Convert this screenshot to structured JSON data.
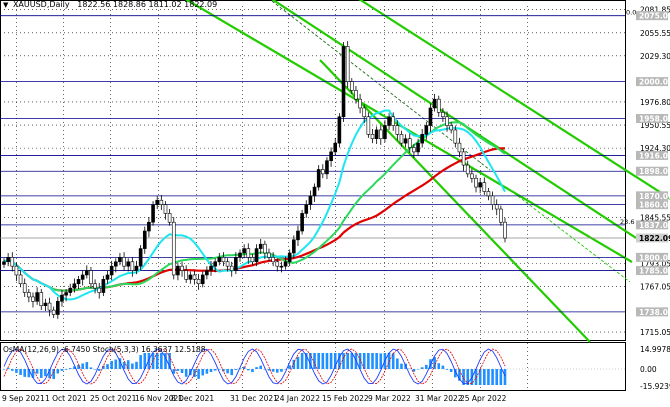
{
  "header": {
    "symbol_label": "XAUUSD,Daily",
    "ohlc": "1822.56 1828.86 1811.02 1822.09"
  },
  "osma_header": "OsMA(12,26,9) -6.7450  Stoch(5,3,3) 16.3637 12.5188",
  "colors": {
    "bull_candle": "#000000",
    "grid": "#000000",
    "level_line": "#00008b",
    "channel": "#22cc00",
    "ma_cyan": "#1ee6f0",
    "ma_green": "#2bd85c",
    "ma_red": "#e00000",
    "histogram": "#1e90ff",
    "stoch_main": "#1e3cff",
    "stoch_signal": "#e00000",
    "price_tag_bg": "#b8b8b8"
  },
  "chart_data": {
    "type": "candlestick",
    "title": "XAUUSD,Daily",
    "y_range": [
      1706,
      2086
    ],
    "y_ticks": [
      "2081.85",
      "2055.55",
      "2029.30",
      "1976.80",
      "1950.55",
      "1924.30",
      "1845.55",
      "1793.05",
      "1767.05",
      "1715.05"
    ],
    "x_labels": [
      "9 Sep 2021",
      "1 Oct 2021",
      "25 Oct 2021",
      "16 Nov 2021",
      "8 Dec 2021",
      "31 Dec 2021",
      "24 Jan 2022",
      "15 Feb 2022",
      "9 Mar 2022",
      "31 Mar 2022",
      "25 Apr 2022"
    ],
    "level_tags": [
      {
        "label": "2075.00",
        "value": 2075.0
      },
      {
        "label": "2000.00",
        "value": 2000.0
      },
      {
        "label": "1958.00",
        "value": 1958.0
      },
      {
        "label": "1916.00",
        "value": 1916.0
      },
      {
        "label": "1898.00",
        "value": 1898.0
      },
      {
        "label": "1870.00",
        "value": 1870.0
      },
      {
        "label": "1860.00",
        "value": 1860.0
      },
      {
        "label": "1837.00",
        "value": 1837.0
      },
      {
        "label": "1822.09",
        "value": 1822.09
      },
      {
        "label": "1800.00",
        "value": 1800.0
      },
      {
        "label": "1785.00",
        "value": 1785.0
      },
      {
        "label": "1738.00",
        "value": 1738.0
      }
    ],
    "fib_label_top": "0.0",
    "fib_label_mid": "23.6",
    "current_price": "1822.09",
    "osma_ticks": [
      "14.9978",
      "0.00",
      "-15.9239"
    ]
  }
}
